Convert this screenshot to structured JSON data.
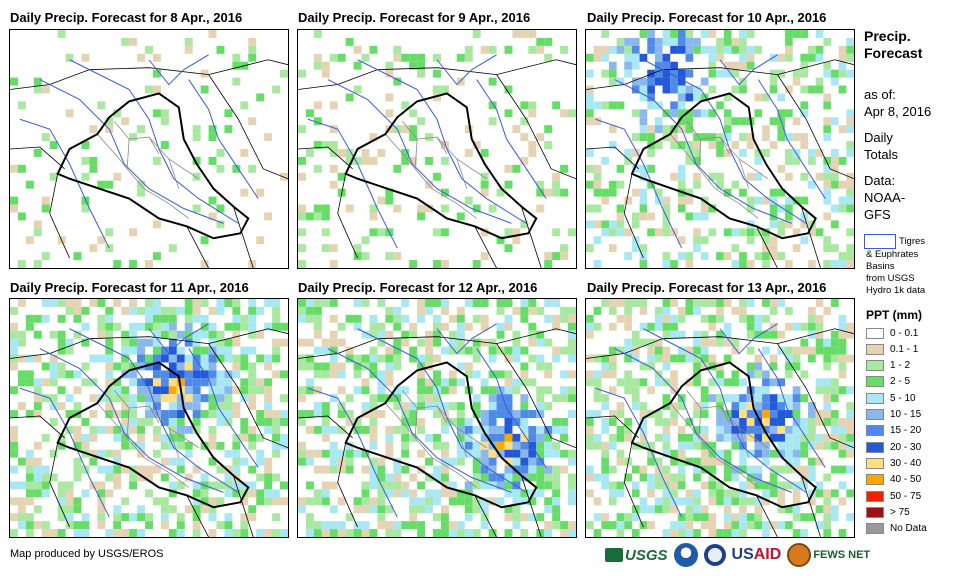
{
  "panels": [
    {
      "title": "Daily Precip. Forecast for 8 Apr., 2016",
      "day": 0
    },
    {
      "title": "Daily Precip. Forecast for 9 Apr., 2016",
      "day": 1
    },
    {
      "title": "Daily Precip. Forecast for 10 Apr., 2016",
      "day": 2
    },
    {
      "title": "Daily Precip. Forecast for 11 Apr., 2016",
      "day": 3
    },
    {
      "title": "Daily Precip. Forecast for 12 Apr., 2016",
      "day": 4
    },
    {
      "title": "Daily Precip. Forecast for 13 Apr., 2016",
      "day": 5
    }
  ],
  "legend": {
    "title_line1": "Precip.",
    "title_line2": "Forecast",
    "asof_label": "as of:",
    "asof_date": "Apr 8, 2016",
    "daily1": "Daily",
    "daily2": "Totals",
    "data_label": "Data:",
    "data_src1": "NOAA-",
    "data_src2": "GFS",
    "basin_line1": "Tigres",
    "basin_line2": "& Euphrates",
    "basin_line3": "Basins",
    "basin_line4": "from USGS",
    "basin_line5": "Hydro 1k data",
    "ppt_title": "PPT (mm)",
    "classes": [
      {
        "label": "0 - 0.1",
        "color": "#ffffff"
      },
      {
        "label": "0.1 - 1",
        "color": "#e6d3b3"
      },
      {
        "label": "1 - 2",
        "color": "#a8e8a0"
      },
      {
        "label": "2 - 5",
        "color": "#66dd66"
      },
      {
        "label": "5 - 10",
        "color": "#a8e8f4"
      },
      {
        "label": "10 - 15",
        "color": "#88b8ee"
      },
      {
        "label": "15 - 20",
        "color": "#4f8be6"
      },
      {
        "label": "20 - 30",
        "color": "#2358d8"
      },
      {
        "label": "30 - 40",
        "color": "#ffe080"
      },
      {
        "label": "40 - 50",
        "color": "#ffa500"
      },
      {
        "label": "50 - 75",
        "color": "#ee2200"
      },
      {
        "label": "> 75",
        "color": "#a01010"
      },
      {
        "label": "No Data",
        "color": "#999999"
      }
    ]
  },
  "footer": {
    "credit": "Map produced by USGS/EROS",
    "logo_usgs": "USGS",
    "logo_usaid_a": "US",
    "logo_usaid_b": "AID",
    "logo_fews": "FEWS NET"
  },
  "colors": {
    "border": "#000000",
    "province": "#888888",
    "river": "#3a5bd9"
  }
}
